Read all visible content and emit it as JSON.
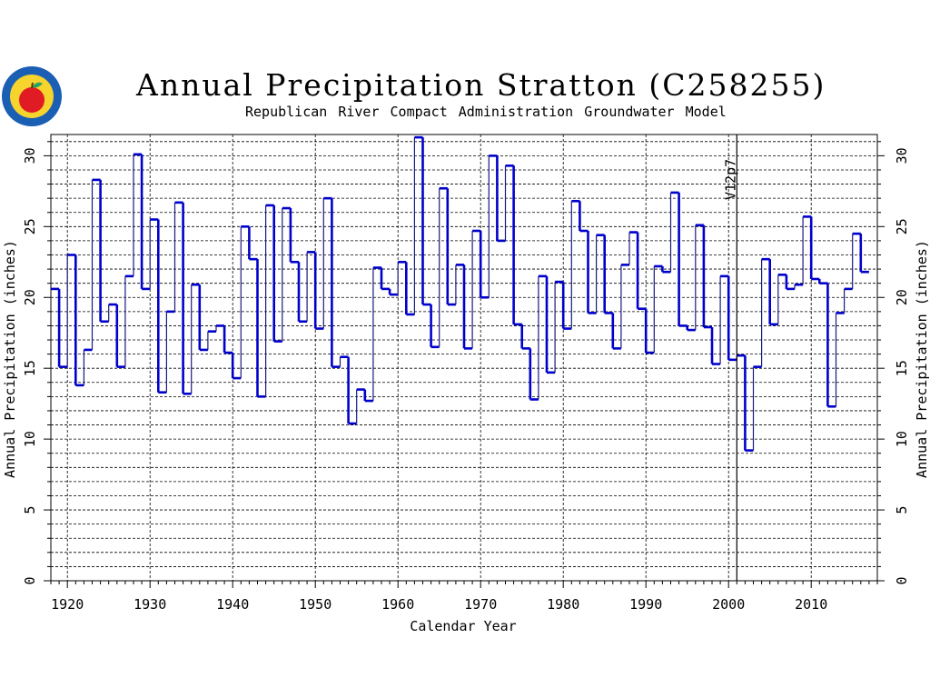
{
  "title": "Annual Precipitation Stratton (C258255)",
  "subtitle": "Republican River Compact Administration Groundwater Model",
  "logo": {
    "icon": "apple-seal-icon",
    "colors": {
      "ring": "#1a5fb4",
      "field": "#f6d32d",
      "apple": "#e01b24"
    }
  },
  "colors": {
    "step_thick": "#0000cc",
    "step_thin": "#1a1a80",
    "grid": "#000000",
    "marker": "#000000"
  },
  "chart_data": {
    "type": "step",
    "title": "Annual Precipitation Stratton (C258255)",
    "xlabel": "Calendar Year",
    "ylabel": "Annual Precipitation (inches)",
    "ylabel_right": "Annual Precipitation (inches)",
    "xlim": [
      1918,
      2018
    ],
    "ylim": [
      0,
      31.5
    ],
    "x_ticks": [
      1920,
      1930,
      1940,
      1950,
      1960,
      1970,
      1980,
      1990,
      2000,
      2010
    ],
    "y_ticks": [
      0,
      5,
      10,
      15,
      20,
      25,
      30
    ],
    "grid": true,
    "annotation": {
      "x": 2001,
      "label": "V12p7"
    },
    "series": [
      {
        "years": [
          1918,
          1919,
          1920,
          1921,
          1922,
          1923,
          1924,
          1925,
          1926,
          1927,
          1928,
          1929,
          1930,
          1931,
          1932,
          1933,
          1934,
          1935,
          1936,
          1937,
          1938,
          1939,
          1940,
          1941,
          1942,
          1943,
          1944,
          1945,
          1946,
          1947,
          1948,
          1949,
          1950,
          1951,
          1952,
          1953,
          1954,
          1955,
          1956,
          1957,
          1958,
          1959,
          1960,
          1961,
          1962,
          1963,
          1964,
          1965,
          1966,
          1967,
          1968,
          1969,
          1970,
          1971,
          1972,
          1973,
          1974,
          1975,
          1976,
          1977,
          1978,
          1979,
          1980,
          1981,
          1982,
          1983,
          1984,
          1985,
          1986,
          1987,
          1988,
          1989,
          1990,
          1991,
          1992,
          1993,
          1994,
          1995,
          1996,
          1997,
          1998,
          1999,
          2000,
          2001,
          2002,
          2003,
          2004,
          2005,
          2006,
          2007,
          2008,
          2009,
          2010,
          2011,
          2012,
          2013,
          2014,
          2015,
          2016
        ],
        "values": [
          20.6,
          15.1,
          23.0,
          13.8,
          16.3,
          28.3,
          18.3,
          19.5,
          15.1,
          21.5,
          30.1,
          20.6,
          25.5,
          13.3,
          19.0,
          26.7,
          13.2,
          20.9,
          16.3,
          17.6,
          18.0,
          16.1,
          14.3,
          25.0,
          22.7,
          13.0,
          26.5,
          16.9,
          26.3,
          22.5,
          18.3,
          23.2,
          17.8,
          27.0,
          15.1,
          15.8,
          11.1,
          13.5,
          12.7,
          22.1,
          20.6,
          20.2,
          22.5,
          18.8,
          31.3,
          19.5,
          16.5,
          27.7,
          19.5,
          22.3,
          16.4,
          24.7,
          20.0,
          30.0,
          24.0,
          29.3,
          18.1,
          16.4,
          12.8,
          21.5,
          14.7,
          21.1,
          17.8,
          26.8,
          24.7,
          18.9,
          24.4,
          18.9,
          16.4,
          22.3,
          24.6,
          19.2,
          16.1,
          22.2,
          21.8,
          27.4,
          18.0,
          17.7,
          25.1,
          17.9,
          15.3,
          21.5,
          15.6,
          15.9,
          9.2,
          15.1,
          22.7,
          18.1,
          21.6,
          20.6,
          20.9,
          25.7,
          21.3,
          21.0,
          12.3,
          18.9,
          20.6,
          24.5,
          21.8
        ]
      }
    ]
  }
}
